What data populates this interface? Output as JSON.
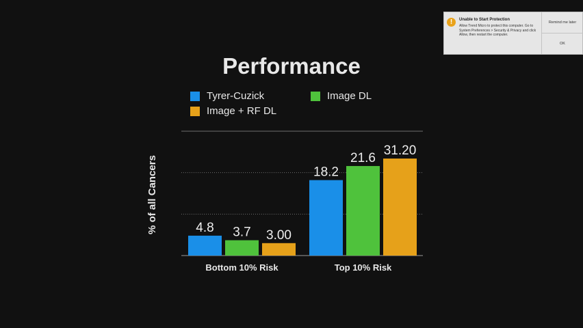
{
  "slide": {
    "title": "Performance"
  },
  "legend": [
    {
      "label": "Tyrer-Cuzick",
      "color": "#1a8fe8"
    },
    {
      "label": "Image DL",
      "color": "#4fc23c"
    },
    {
      "label": "Image + RF DL",
      "color": "#e6a11a"
    }
  ],
  "chart_data": {
    "type": "bar",
    "title": "Performance",
    "ylabel": "% of all Cancers",
    "xlabel": "",
    "categories": [
      "Bottom 10% Risk",
      "Top 10% Risk"
    ],
    "series": [
      {
        "name": "Tyrer-Cuzick",
        "values": [
          4.8,
          18.2
        ],
        "labels": [
          "4.8",
          "18.2"
        ],
        "color": "#1a8fe8"
      },
      {
        "name": "Image DL",
        "values": [
          3.7,
          21.6
        ],
        "labels": [
          "3.7",
          "21.6"
        ],
        "color": "#4fc23c"
      },
      {
        "name": "Image + RF DL",
        "values": [
          3.0,
          31.2
        ],
        "labels": [
          "3.00",
          "31.20"
        ],
        "color": "#e6a11a"
      }
    ],
    "ylim": [
      0,
      30
    ],
    "grid": true,
    "legend_position": "top"
  },
  "notification": {
    "title": "Unable to Start Protection",
    "body": "Allow Trend Micro to protect this computer. Go to System Preferences > Security & Privacy and click Allow, then restart the computer.",
    "remind_label": "Remind me later",
    "ok_label": "OK",
    "icon": "warning-icon",
    "icon_glyph": "!"
  }
}
